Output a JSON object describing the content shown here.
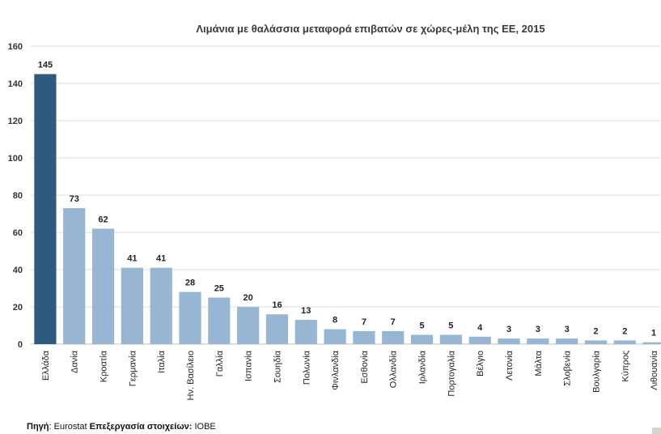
{
  "chart_data": {
    "type": "bar",
    "title": "Λιμάνια με θαλάσσια μεταφορά επιβατών σε χώρες-μέλη της ΕΕ, 2015",
    "xlabel": "",
    "ylabel": "",
    "ylim": [
      0,
      160
    ],
    "yticks": [
      0,
      20,
      40,
      60,
      80,
      100,
      120,
      140,
      160
    ],
    "grid": true,
    "categories": [
      "Ελλάδα",
      "Δανία",
      "Κροατία",
      "Γερμανία",
      "Ιταλία",
      "Ην. Βασίλειο",
      "Γαλλία",
      "Ισπανία",
      "Σουηδία",
      "Πολωνία",
      "Φινλανδία",
      "Εσθονία",
      "Ολλανδία",
      "Ιρλανδία",
      "Πορτογαλία",
      "Βέλγιο",
      "Λετονία",
      "Μάλτα",
      "Σλοβενία",
      "Βουλγαρία",
      "Κύπρος",
      "Λιθουανία"
    ],
    "values": [
      145,
      73,
      62,
      41,
      41,
      28,
      25,
      20,
      16,
      13,
      8,
      7,
      7,
      5,
      5,
      4,
      3,
      3,
      3,
      2,
      2,
      1
    ],
    "colors": {
      "highlight": "#2e5a7e",
      "default": "#96b6d4",
      "grid": "#dcdcdc"
    },
    "highlight_index": 0
  },
  "footer": {
    "source_label": "Πηγή",
    "source_value": ": Eurostat ",
    "processing_label": "Επεξεργασία στοιχείων:",
    "processing_value": " ΙΟΒΕ"
  }
}
